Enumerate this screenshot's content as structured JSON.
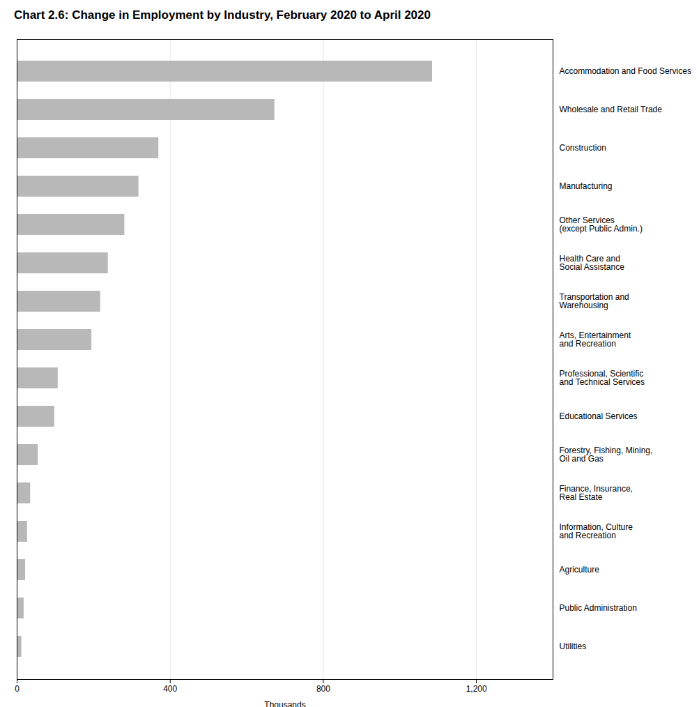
{
  "chart_data": {
    "type": "bar",
    "orientation": "horizontal",
    "title": "Chart 2.6: Change in Employment by Industry, February 2020 to April 2020",
    "xlabel": "Thousands",
    "categories": [
      "Accommodation and Food Services",
      "Wholesale and Retail Trade",
      "Construction",
      "Manufacturing",
      "Other Services\n(except Public Admin.)",
      "Health Care and\nSocial Assistance",
      "Transportation and\nWarehousing",
      "Arts, Entertainment\nand Recreation",
      "Professional, Scientific\nand Technical Services",
      "Educational Services",
      "Forestry, Fishing, Mining,\nOil and Gas",
      "Finance, Insurance,\nReal Estate",
      "Information, Culture\nand Recreation",
      "Agriculture",
      "Public Administration",
      "Utilities"
    ],
    "values": [
      1085,
      673,
      370,
      318,
      281,
      238,
      218,
      195,
      107,
      98,
      55,
      35,
      27,
      22,
      18,
      12
    ],
    "color": "#b8b8b8",
    "xlim": [
      0,
      1400
    ],
    "xticks": [
      0,
      400,
      800,
      {
        "value": 1200,
        "label": "1,200"
      }
    ],
    "grid": true
  }
}
